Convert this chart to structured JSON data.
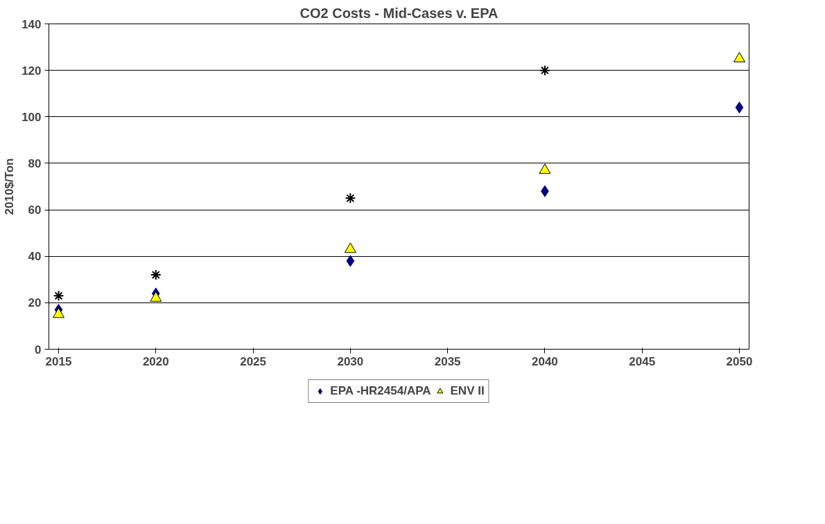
{
  "chart_data": {
    "type": "scatter",
    "title": "CO2 Costs - Mid-Cases v. EPA",
    "ylabel": "2010$/Ton",
    "x": [
      2015,
      2020,
      2030,
      2040,
      2050
    ],
    "series": [
      {
        "name": "EPA -HR2454/APA",
        "color": "#000080",
        "marker": "diamond",
        "values": [
          17,
          24,
          38,
          68,
          104
        ]
      },
      {
        "name": "ENV II",
        "color": "#ffff00",
        "marker": "triangle",
        "values": [
          15,
          22,
          43,
          77,
          125
        ]
      },
      {
        "color": "#000000",
        "marker": "cross",
        "values": [
          23,
          32,
          65,
          120,
          null
        ]
      }
    ],
    "xlim": [
      2014.5,
      2050.5
    ],
    "xticks": [
      2015,
      2020,
      2025,
      2030,
      2035,
      2040,
      2045,
      2050
    ],
    "ylim": [
      0,
      140
    ],
    "yticks": [
      0,
      20,
      40,
      60,
      80,
      100,
      120,
      140
    ],
    "grid": "y",
    "legend": "bottom"
  }
}
